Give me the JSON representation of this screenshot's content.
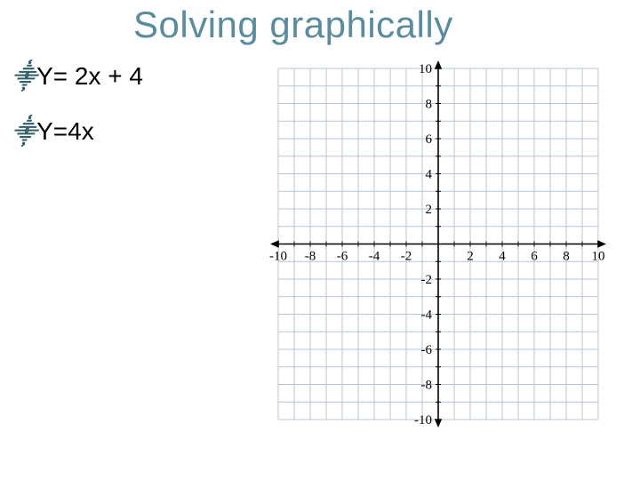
{
  "title": {
    "text": "Solving graphically",
    "color": "#5a8c9e",
    "fontsize": 42
  },
  "bullets": {
    "icon_color": "#2f5d6a",
    "text_color": "#000000",
    "fontsize": 28,
    "items": [
      {
        "label": "Y= 2x + 4"
      },
      {
        "label": "Y=4x"
      }
    ]
  },
  "chart": {
    "type": "grid",
    "background_color": "#ffffff",
    "grid_color": "#b8c5d6",
    "axis_color": "#000000",
    "label_color": "#000000",
    "label_fontsize": 15,
    "xlim": [
      -10,
      10
    ],
    "ylim": [
      -10,
      10
    ],
    "x_tick_step": 1,
    "y_tick_step": 1,
    "x_label_step": 2,
    "y_label_step": 2,
    "x_tick_labels": [
      -10,
      -8,
      -6,
      -4,
      -2,
      2,
      4,
      6,
      8,
      10
    ],
    "y_tick_labels": [
      -10,
      -8,
      -6,
      -4,
      -2,
      2,
      4,
      6,
      8,
      10
    ]
  }
}
